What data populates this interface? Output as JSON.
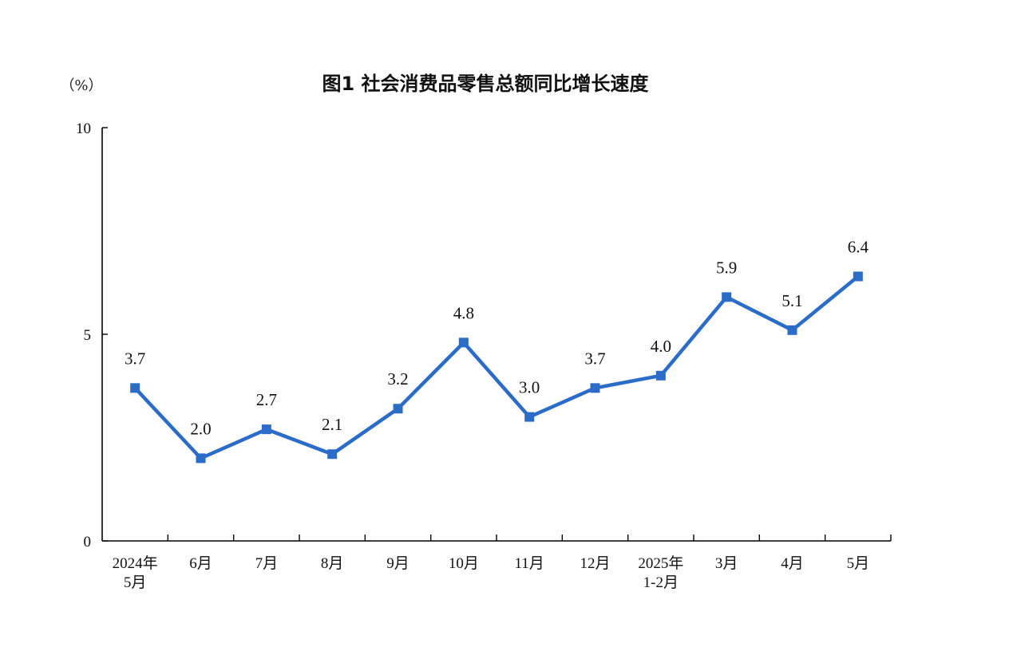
{
  "chart_data": {
    "type": "line",
    "title": "图1  社会消费品零售总额同比增长速度",
    "ylabel": "（%）",
    "xlabel": "",
    "categories": [
      [
        "2024年",
        "5月"
      ],
      [
        "6月"
      ],
      [
        "7月"
      ],
      [
        "8月"
      ],
      [
        "9月"
      ],
      [
        "10月"
      ],
      [
        "11月"
      ],
      [
        "12月"
      ],
      [
        "2025年",
        "1-2月"
      ],
      [
        "3月"
      ],
      [
        "4月"
      ],
      [
        "5月"
      ]
    ],
    "values": [
      3.7,
      2.0,
      2.7,
      2.1,
      3.2,
      4.8,
      3.0,
      3.7,
      4.0,
      5.9,
      5.1,
      6.4
    ],
    "data_labels": [
      "3.7",
      "2.0",
      "2.7",
      "2.1",
      "3.2",
      "4.8",
      "3.0",
      "3.7",
      "4.0",
      "5.9",
      "5.1",
      "6.4"
    ],
    "ylim": [
      0,
      10
    ],
    "yticks": [
      "0",
      "5",
      "10"
    ],
    "grid": false,
    "legend": "none",
    "color": "#2a6cc8",
    "marker": "square"
  }
}
